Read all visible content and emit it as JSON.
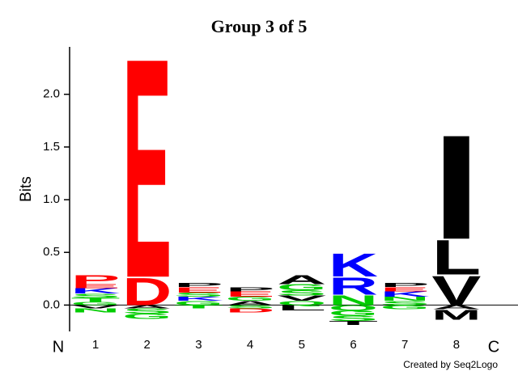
{
  "chart_data": {
    "type": "logo",
    "title": "Group 3 of 5",
    "y_label": "Bits",
    "n_term": "N",
    "c_term": "C",
    "credit": "Created by Seq2Logo",
    "ylim": [
      -0.25,
      2.45
    ],
    "yticks": [
      {
        "value": 0,
        "label": "0.0"
      },
      0.5,
      {
        "value": 1,
        "label": "1.0"
      },
      1.5,
      {
        "value": 2,
        "label": "2.0"
      }
    ],
    "categories": [
      "1",
      "2",
      "3",
      "4",
      "5",
      "6",
      "7",
      "8"
    ],
    "stacks": [
      [
        {
          "letter": "G",
          "color": "#00cc00",
          "value": 0.03
        },
        {
          "letter": "T",
          "color": "#00cc00",
          "value": 0.04
        },
        {
          "letter": "S",
          "color": "#00cc00",
          "value": 0.04
        },
        {
          "letter": "K",
          "color": "#0000ff",
          "value": 0.05
        },
        {
          "letter": "E",
          "color": "#ff0000",
          "value": 0.04
        },
        {
          "letter": "P",
          "color": "#ff0000",
          "value": 0.09
        },
        {
          "letter": "V",
          "color": "#000000",
          "value": -0.03
        },
        {
          "letter": "N",
          "color": "#00cc00",
          "value": -0.04
        }
      ],
      [
        {
          "letter": "D",
          "color": "#ff0000",
          "value": 0.27
        },
        {
          "letter": "E",
          "color": "#ff0000",
          "value": 2.17
        },
        {
          "letter": "A",
          "color": "#000000",
          "value": -0.03
        },
        {
          "letter": "S",
          "color": "#00cc00",
          "value": -0.05
        },
        {
          "letter": "G",
          "color": "#00cc00",
          "value": -0.05
        }
      ],
      [
        {
          "letter": "G",
          "color": "#00cc00",
          "value": 0.04
        },
        {
          "letter": "K",
          "color": "#0000ff",
          "value": 0.04
        },
        {
          "letter": "S",
          "color": "#00cc00",
          "value": 0.04
        },
        {
          "letter": "E",
          "color": "#ff0000",
          "value": 0.05
        },
        {
          "letter": "P",
          "color": "#000000",
          "value": 0.04
        },
        {
          "letter": "T",
          "color": "#00cc00",
          "value": -0.03
        }
      ],
      [
        {
          "letter": "A",
          "color": "#000000",
          "value": 0.04
        },
        {
          "letter": "G",
          "color": "#00cc00",
          "value": 0.04
        },
        {
          "letter": "E",
          "color": "#ff0000",
          "value": 0.05
        },
        {
          "letter": "P",
          "color": "#000000",
          "value": 0.04
        },
        {
          "letter": "S",
          "color": "#00cc00",
          "value": -0.03
        },
        {
          "letter": "D",
          "color": "#ff0000",
          "value": -0.04
        }
      ],
      [
        {
          "letter": "Q",
          "color": "#00cc00",
          "value": 0.04
        },
        {
          "letter": "V",
          "color": "#000000",
          "value": 0.05
        },
        {
          "letter": "S",
          "color": "#00cc00",
          "value": 0.05
        },
        {
          "letter": "G",
          "color": "#00cc00",
          "value": 0.06
        },
        {
          "letter": "A",
          "color": "#000000",
          "value": 0.09
        },
        {
          "letter": "L",
          "color": "#000000",
          "value": -0.05
        }
      ],
      [
        {
          "letter": "N",
          "color": "#00cc00",
          "value": 0.1
        },
        {
          "letter": "R",
          "color": "#0000ff",
          "value": 0.17
        },
        {
          "letter": "K",
          "color": "#0000ff",
          "value": 0.23
        },
        {
          "letter": "Q",
          "color": "#00cc00",
          "value": -0.05
        },
        {
          "letter": "G",
          "color": "#00cc00",
          "value": -0.05
        },
        {
          "letter": "S",
          "color": "#00cc00",
          "value": -0.05
        },
        {
          "letter": "T",
          "color": "#000000",
          "value": -0.04
        }
      ],
      [
        {
          "letter": "S",
          "color": "#00cc00",
          "value": 0.04
        },
        {
          "letter": "N",
          "color": "#00cc00",
          "value": 0.04
        },
        {
          "letter": "K",
          "color": "#0000ff",
          "value": 0.05
        },
        {
          "letter": "E",
          "color": "#ff0000",
          "value": 0.04
        },
        {
          "letter": "P",
          "color": "#000000",
          "value": 0.04
        },
        {
          "letter": "G",
          "color": "#00cc00",
          "value": -0.04
        }
      ],
      [
        {
          "letter": "V",
          "color": "#000000",
          "value": 0.29
        },
        {
          "letter": "L",
          "color": "#000000",
          "value": 0.34
        },
        {
          "letter": "I",
          "color": "#000000",
          "value": 1.03
        },
        {
          "letter": "A",
          "color": "#000000",
          "value": -0.04
        },
        {
          "letter": "M",
          "color": "#000000",
          "value": -0.1
        }
      ]
    ]
  }
}
